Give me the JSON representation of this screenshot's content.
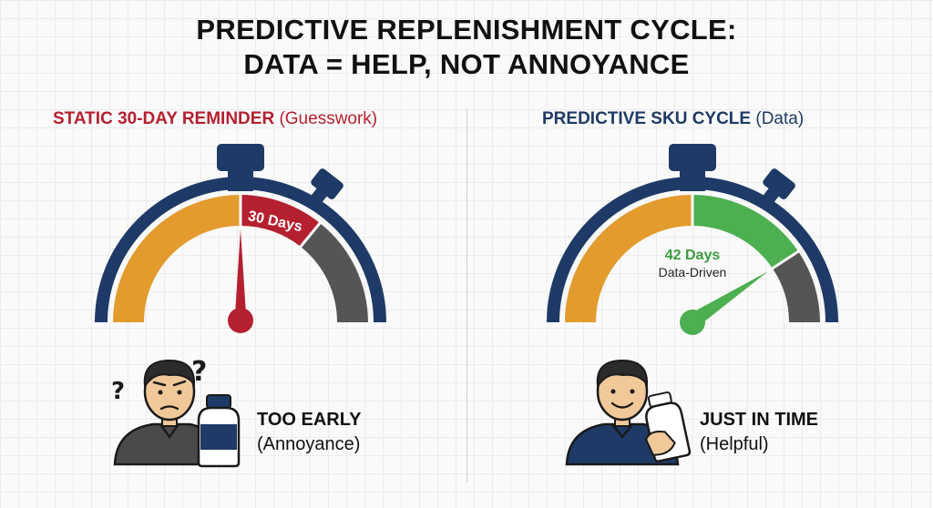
{
  "title": {
    "line1": "PREDICTIVE REPLENISHMENT CYCLE:",
    "line2": "DATA = HELP, NOT ANNOYANCE"
  },
  "left_panel": {
    "heading_strong": "STATIC 30-DAY REMINDER",
    "heading_light": "(Guesswork)",
    "gauge_label": "30 Days",
    "status_primary": "TOO EARLY",
    "status_secondary": "(Annoyance)",
    "person_icon": "confused-person-icon",
    "product_icon": "bottle-icon"
  },
  "right_panel": {
    "heading_strong": "PREDICTIVE SKU CYCLE",
    "heading_light": "(Data)",
    "gauge_label": "42 Days",
    "gauge_sublabel": "Data-Driven",
    "status_primary": "JUST IN TIME",
    "status_secondary": "(Helpful)",
    "person_icon": "happy-person-icon",
    "product_icon": "bottle-icon"
  },
  "colors": {
    "navy": "#1e3a66",
    "orange": "#e39b2e",
    "red": "#b5202f",
    "gray": "#555555",
    "green": "#4caf50"
  }
}
